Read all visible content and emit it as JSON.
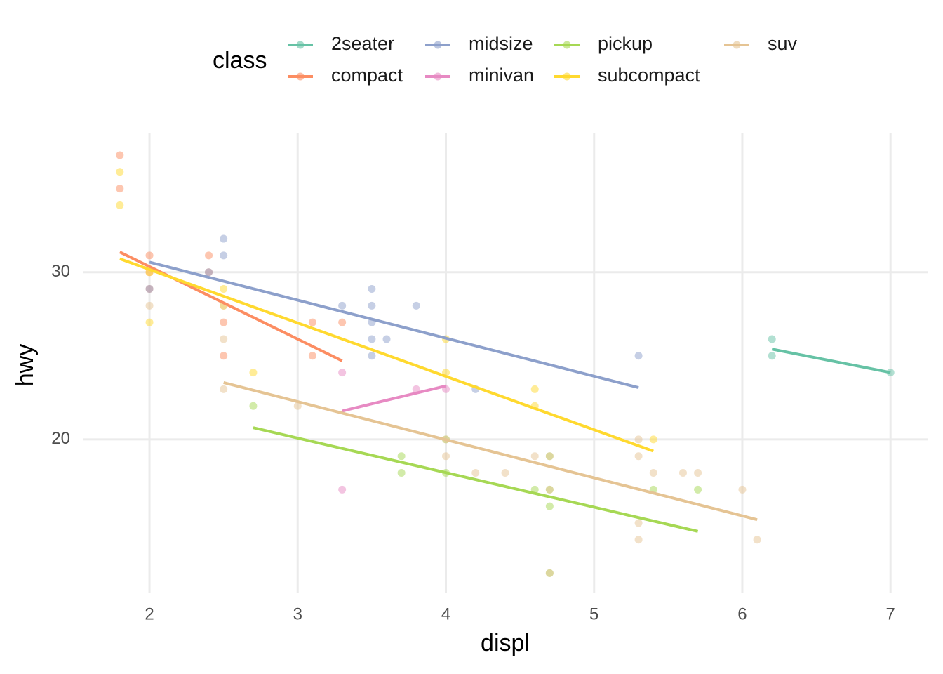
{
  "chart_data": {
    "type": "scatter",
    "x_label": "displ",
    "y_label": "hwy",
    "legend_title": "class",
    "legend_position": "top",
    "grid": true,
    "xlim": [
      1.55,
      7.25
    ],
    "ylim": [
      10.8,
      38.3
    ],
    "xticks": [
      2,
      3,
      4,
      5,
      6,
      7
    ],
    "yticks": [
      20,
      30
    ],
    "series": [
      {
        "name": "2seater",
        "color": "#66c2a5",
        "x": [
          6.2,
          6.2,
          7
        ],
        "values": [
          26,
          25,
          24
        ],
        "fit_x": [
          6.2,
          7
        ],
        "fit_values": [
          25.4,
          24
        ]
      },
      {
        "name": "compact",
        "color": "#fc8d62",
        "x": [
          1.8,
          1.8,
          2,
          2,
          2,
          2.4,
          2.4,
          2.5,
          2.5,
          3.1,
          3.1,
          3.3
        ],
        "values": [
          37,
          35,
          31,
          30,
          29,
          31,
          30,
          27,
          25,
          27,
          25,
          27
        ],
        "fit_x": [
          1.8,
          3.3
        ],
        "fit_values": [
          31.2,
          24.7
        ]
      },
      {
        "name": "midsize",
        "color": "#8da0cb",
        "x": [
          2.4,
          2.5,
          2.5,
          3.3,
          3.5,
          3.5,
          3.5,
          3.5,
          3.5,
          3.6,
          3.8,
          4.2,
          5.3,
          2
        ],
        "values": [
          30,
          32,
          31,
          28,
          29,
          28,
          27,
          26,
          25,
          26,
          28,
          23,
          25,
          29
        ],
        "fit_x": [
          2,
          5.3
        ],
        "fit_values": [
          30.6,
          23.1
        ]
      },
      {
        "name": "minivan",
        "color": "#e78ac3",
        "x": [
          3.3,
          3.3,
          3.8,
          4
        ],
        "values": [
          24,
          17,
          23,
          23
        ],
        "fit_x": [
          3.3,
          4
        ],
        "fit_values": [
          21.7,
          23.2
        ]
      },
      {
        "name": "pickup",
        "color": "#a6d854",
        "x": [
          2.7,
          3.7,
          3.7,
          4,
          4,
          4.6,
          4.7,
          4.7,
          4.7,
          4.7,
          5.4,
          5.7
        ],
        "values": [
          22,
          19,
          18,
          18,
          20,
          17,
          19,
          17,
          16,
          12,
          17,
          17
        ],
        "fit_x": [
          2.7,
          5.7
        ],
        "fit_values": [
          20.7,
          14.5
        ]
      },
      {
        "name": "subcompact",
        "color": "#ffd92f",
        "x": [
          1.8,
          1.8,
          2,
          2,
          2.5,
          2.5,
          2.7,
          4,
          4,
          4.6,
          4.6,
          5.4
        ],
        "values": [
          36,
          34,
          27,
          30,
          29,
          28,
          24,
          26,
          24,
          23,
          22,
          20
        ],
        "fit_x": [
          1.8,
          5.4
        ],
        "fit_values": [
          30.8,
          19.3
        ]
      },
      {
        "name": "suv",
        "color": "#e5c494",
        "x": [
          2,
          2.5,
          2.5,
          2.5,
          3,
          4,
          4,
          4.2,
          4.4,
          4.6,
          4.7,
          4.7,
          4.7,
          5.3,
          5.3,
          5.3,
          5.3,
          5.4,
          5.6,
          5.7,
          6,
          6.1
        ],
        "values": [
          28,
          23,
          26,
          28,
          22,
          20,
          19,
          18,
          18,
          19,
          19,
          17,
          12,
          20,
          19,
          15,
          14,
          18,
          18,
          18,
          17,
          14
        ],
        "fit_x": [
          2.5,
          6.1
        ],
        "fit_values": [
          23.4,
          15.2
        ]
      }
    ]
  }
}
